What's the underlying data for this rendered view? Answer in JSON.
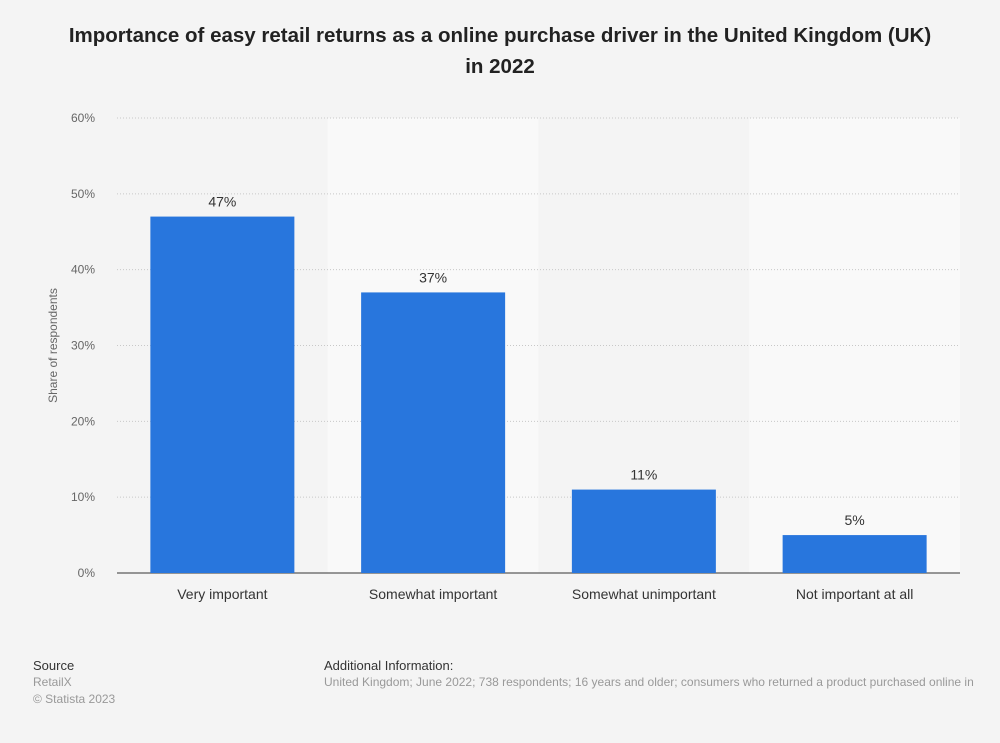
{
  "chart_data": {
    "type": "bar",
    "title": "Importance of easy retail returns as a online purchase driver in the United Kingdom (UK) in 2022",
    "xlabel": "",
    "ylabel": "Share of respondents",
    "categories": [
      "Very important",
      "Somewhat important",
      "Somewhat unimportant",
      "Not important at all"
    ],
    "values": [
      47,
      37,
      11,
      5
    ],
    "data_labels": [
      "47%",
      "37%",
      "11%",
      "5%"
    ],
    "ylim": [
      0,
      60
    ],
    "yticks": [
      0,
      10,
      20,
      30,
      40,
      50,
      60
    ],
    "ytick_labels": [
      "0%",
      "10%",
      "20%",
      "30%",
      "40%",
      "50%",
      "60%"
    ],
    "grid": true,
    "bar_color": "#2876dd"
  },
  "footer": {
    "source_heading": "Source",
    "source": "RetailX",
    "copyright": "© Statista 2023",
    "additional_heading": "Additional Information:",
    "additional": "United Kingdom; June 2022; 738 respondents; 16 years and older; consumers who returned a product purchased online in"
  }
}
